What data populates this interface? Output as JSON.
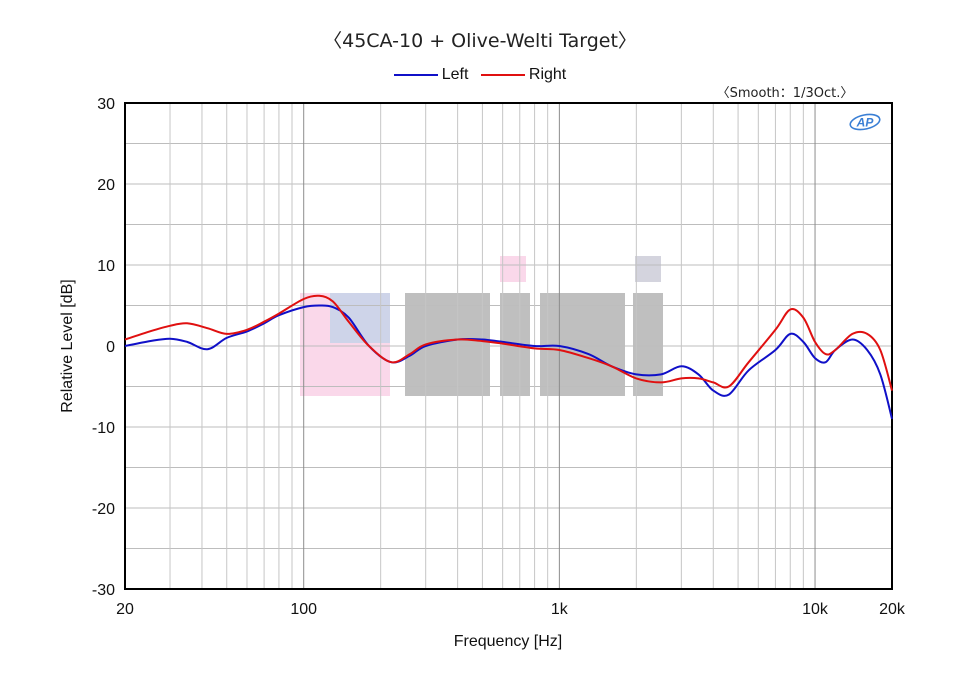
{
  "chart_data": {
    "type": "line",
    "title": "〈45CA-10 + Olive-Welti Target〉",
    "subtitle": "〈Smooth：1/3Oct.〉",
    "xlabel": "Frequency [Hz]",
    "ylabel": "Relative Level [dB]",
    "x_scale": "log",
    "xlim": [
      20,
      20000
    ],
    "ylim": [
      -30,
      30
    ],
    "x_ticks": [
      {
        "value": 20,
        "label": "20"
      },
      {
        "value": 100,
        "label": "100"
      },
      {
        "value": 1000,
        "label": "1k"
      },
      {
        "value": 10000,
        "label": "10k"
      },
      {
        "value": 20000,
        "label": "20k"
      }
    ],
    "y_ticks": [
      {
        "value": 30,
        "label": "30"
      },
      {
        "value": 20,
        "label": "20"
      },
      {
        "value": 10,
        "label": "10"
      },
      {
        "value": 0,
        "label": "0"
      },
      {
        "value": -10,
        "label": "-10"
      },
      {
        "value": -20,
        "label": "-20"
      },
      {
        "value": -30,
        "label": "-30"
      }
    ],
    "grid": true,
    "legend_position": "top-center",
    "series": [
      {
        "name": "Left",
        "color": "#1010c8",
        "x": [
          20,
          25,
          30,
          35,
          42,
          50,
          60,
          70,
          80,
          100,
          115,
          130,
          150,
          180,
          220,
          260,
          300,
          400,
          500,
          600,
          800,
          1000,
          1300,
          1600,
          2000,
          2500,
          3000,
          3500,
          4000,
          4600,
          5500,
          7000,
          8000,
          9000,
          10000,
          11000,
          12000,
          14000,
          16000,
          18000,
          20000
        ],
        "values": [
          0.0,
          0.6,
          0.9,
          0.5,
          -0.4,
          1.0,
          1.8,
          2.8,
          3.8,
          4.8,
          5.0,
          4.8,
          3.5,
          0.0,
          -2.0,
          -1.2,
          0.0,
          0.8,
          0.8,
          0.5,
          0.0,
          0.0,
          -1.0,
          -2.5,
          -3.5,
          -3.5,
          -2.5,
          -3.5,
          -5.5,
          -6.0,
          -3.0,
          -0.5,
          1.5,
          0.5,
          -1.5,
          -2.0,
          -0.5,
          0.8,
          -0.5,
          -3.5,
          -9.0
        ]
      },
      {
        "name": "Right",
        "color": "#e01010",
        "x": [
          20,
          25,
          30,
          35,
          42,
          50,
          60,
          70,
          80,
          100,
          115,
          130,
          150,
          180,
          220,
          260,
          300,
          400,
          500,
          600,
          800,
          1000,
          1300,
          1600,
          2000,
          2500,
          3000,
          3500,
          4000,
          4600,
          5500,
          7000,
          8000,
          9000,
          10000,
          11000,
          12000,
          14000,
          16000,
          18000,
          20000
        ],
        "values": [
          0.8,
          1.8,
          2.5,
          2.8,
          2.2,
          1.5,
          2.0,
          3.0,
          4.0,
          5.8,
          6.2,
          5.5,
          3.0,
          0.0,
          -2.0,
          -1.0,
          0.2,
          0.8,
          0.6,
          0.3,
          -0.3,
          -0.5,
          -1.5,
          -2.5,
          -4.0,
          -4.5,
          -4.0,
          -4.0,
          -4.5,
          -5.0,
          -2.0,
          2.0,
          4.5,
          3.5,
          0.5,
          -1.0,
          -0.5,
          1.5,
          1.5,
          -0.5,
          -5.5
        ]
      }
    ]
  },
  "logo": {
    "text": "AP",
    "color": "#3a7fd5"
  },
  "watermark": {
    "colors": [
      "#f5b8d8",
      "#9ad0e8",
      "#8a8a8a",
      "#b8b8c8"
    ]
  }
}
